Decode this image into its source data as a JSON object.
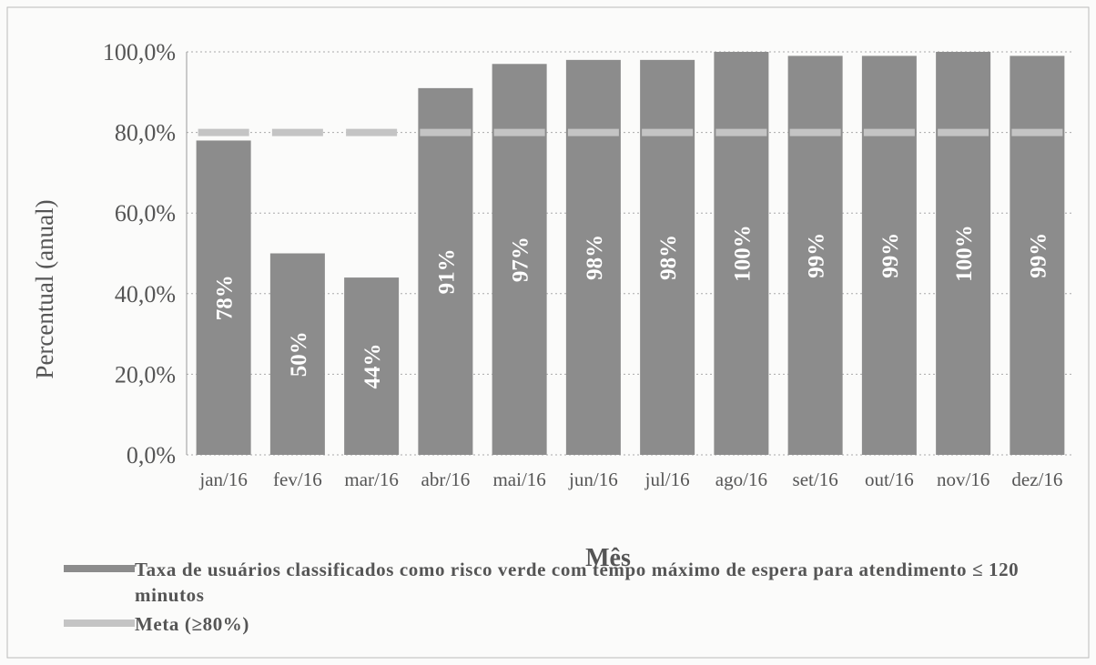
{
  "chart_data": {
    "type": "bar",
    "x_label": "Mês",
    "y_label": "Percentual (anual)",
    "categories": [
      "jan/16",
      "fev/16",
      "mar/16",
      "abr/16",
      "mai/16",
      "jun/16",
      "jul/16",
      "ago/16",
      "set/16",
      "out/16",
      "nov/16",
      "dez/16"
    ],
    "series": [
      {
        "name": "Taxa de usuários classificados como risco verde com tempo máximo de espera para atendimento ≤ 120 minutos",
        "type": "bar",
        "color": "#8c8c8c",
        "values": [
          78,
          50,
          44,
          91,
          97,
          98,
          98,
          100,
          99,
          99,
          100,
          99
        ],
        "value_labels": [
          "78%",
          "50%",
          "44%",
          "91%",
          "97%",
          "98%",
          "98%",
          "100%",
          "99%",
          "99%",
          "100%",
          "99%"
        ]
      },
      {
        "name": "Meta (≥80%)",
        "type": "dash",
        "color": "#c4c4c4",
        "values": [
          80,
          80,
          80,
          80,
          80,
          80,
          80,
          80,
          80,
          80,
          80,
          80
        ]
      }
    ],
    "ylim": [
      0,
      100
    ],
    "yticks": [
      {
        "value": 0,
        "label": "0,0%"
      },
      {
        "value": 20,
        "label": "20,0%"
      },
      {
        "value": 40,
        "label": "40,0%"
      },
      {
        "value": 60,
        "label": "60,0%"
      },
      {
        "value": 80,
        "label": "80,0%"
      },
      {
        "value": 100,
        "label": "100,0%"
      }
    ],
    "grid": true
  }
}
